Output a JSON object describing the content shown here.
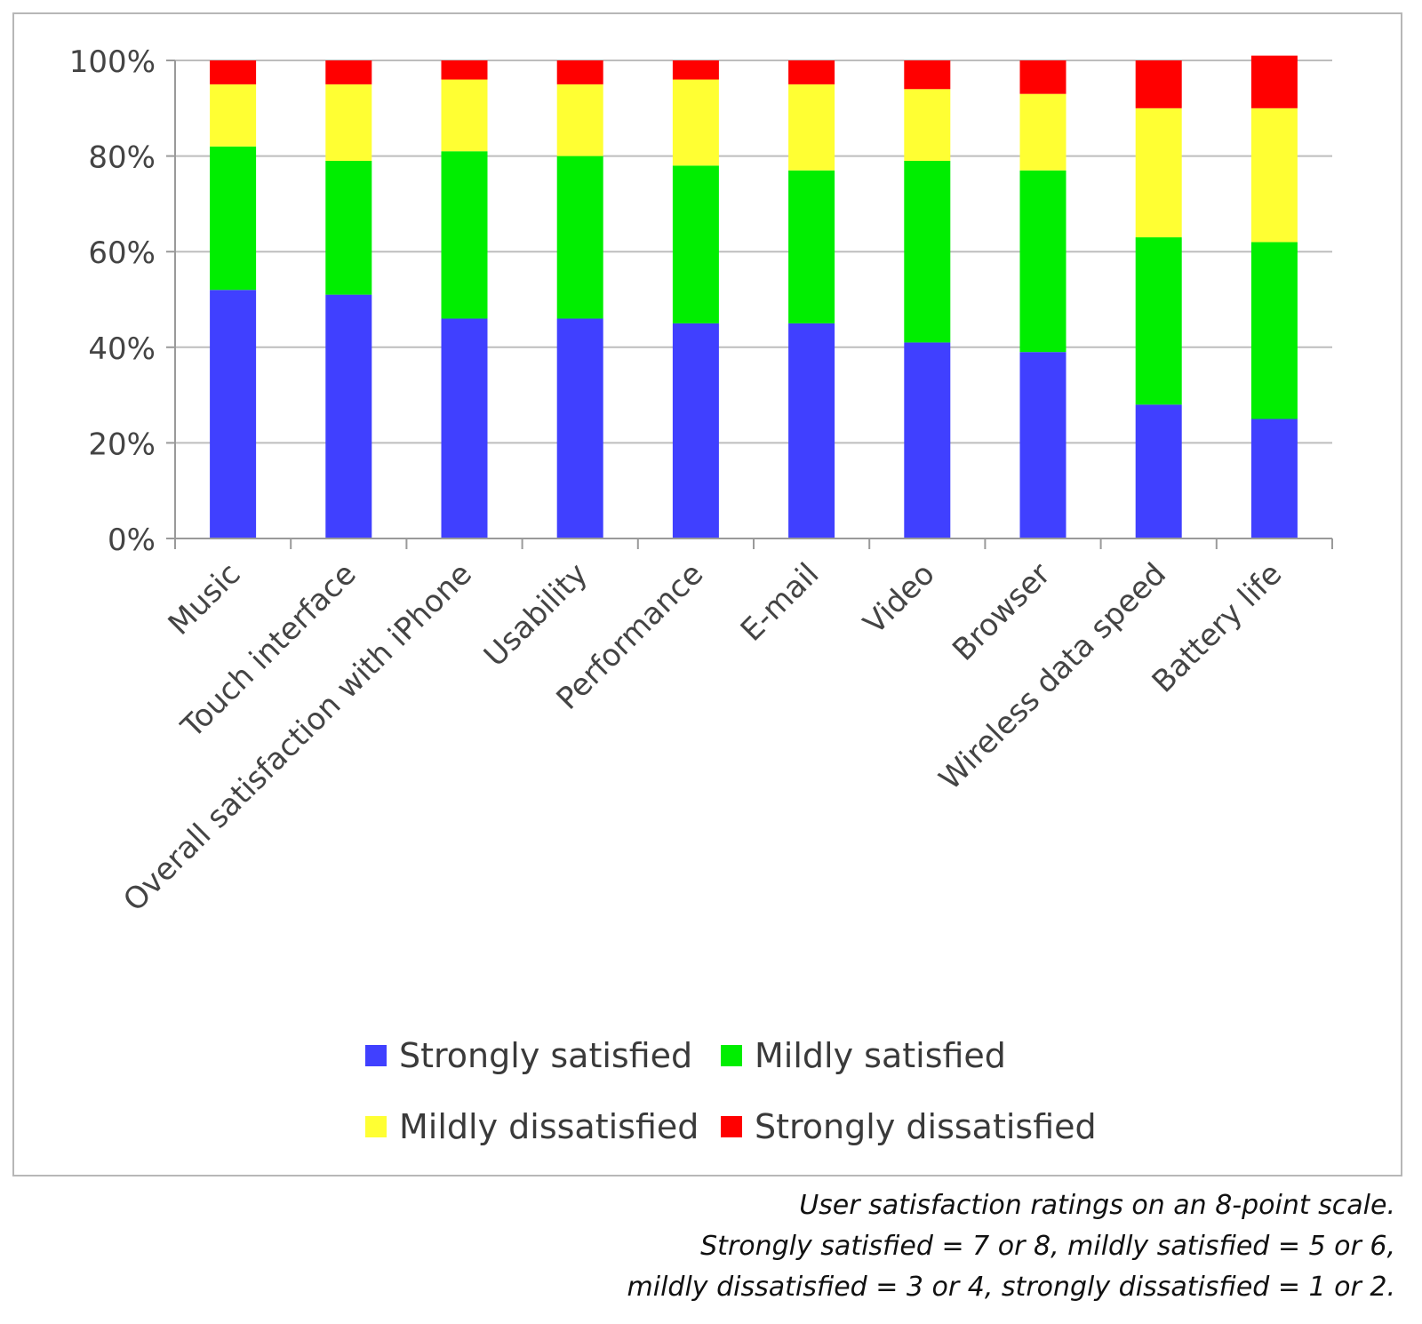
{
  "chart_data": {
    "type": "bar",
    "stacked": true,
    "categories": [
      "Music",
      "Touch interface",
      "Overall satisfaction with iPhone",
      "Usability",
      "Performance",
      "E-mail",
      "Video",
      "Browser",
      "Wireless data speed",
      "Battery life"
    ],
    "series": [
      {
        "name": "Strongly satisfied",
        "color": "#4040ff",
        "values": [
          52,
          51,
          46,
          46,
          45,
          45,
          41,
          39,
          28,
          25
        ]
      },
      {
        "name": "Mildly satisfied",
        "color": "#00ee00",
        "values": [
          30,
          28,
          35,
          34,
          33,
          32,
          38,
          38,
          35,
          37
        ]
      },
      {
        "name": "Mildly dissatisfied",
        "color": "#ffff33",
        "values": [
          13,
          16,
          15,
          15,
          18,
          18,
          15,
          16,
          27,
          28
        ]
      },
      {
        "name": "Strongly dissatisfied",
        "color": "#ff0000",
        "values": [
          5,
          5,
          4,
          5,
          4,
          5,
          6,
          7,
          10,
          11
        ]
      }
    ],
    "ylim": [
      0,
      100
    ],
    "yticks": [
      "0%",
      "20%",
      "40%",
      "60%",
      "80%",
      "100%"
    ],
    "grid": true,
    "legend_position": "bottom",
    "xlabel": "",
    "ylabel": ""
  },
  "legend": {
    "items": [
      {
        "label": "Strongly satisfied",
        "color": "#4040ff"
      },
      {
        "label": "Mildly satisfied",
        "color": "#00ee00"
      },
      {
        "label": "Mildly dissatisfied",
        "color": "#ffff33"
      },
      {
        "label": "Strongly dissatisfied",
        "color": "#ff0000"
      }
    ]
  },
  "caption": {
    "line1": "User satisfaction ratings on an 8-point scale.",
    "line2": "Strongly satisfied = 7 or 8, mildly satisfied = 5 or 6,",
    "line3": "mildly dissatisfied = 3 or 4, strongly dissatisfied = 1 or 2."
  }
}
